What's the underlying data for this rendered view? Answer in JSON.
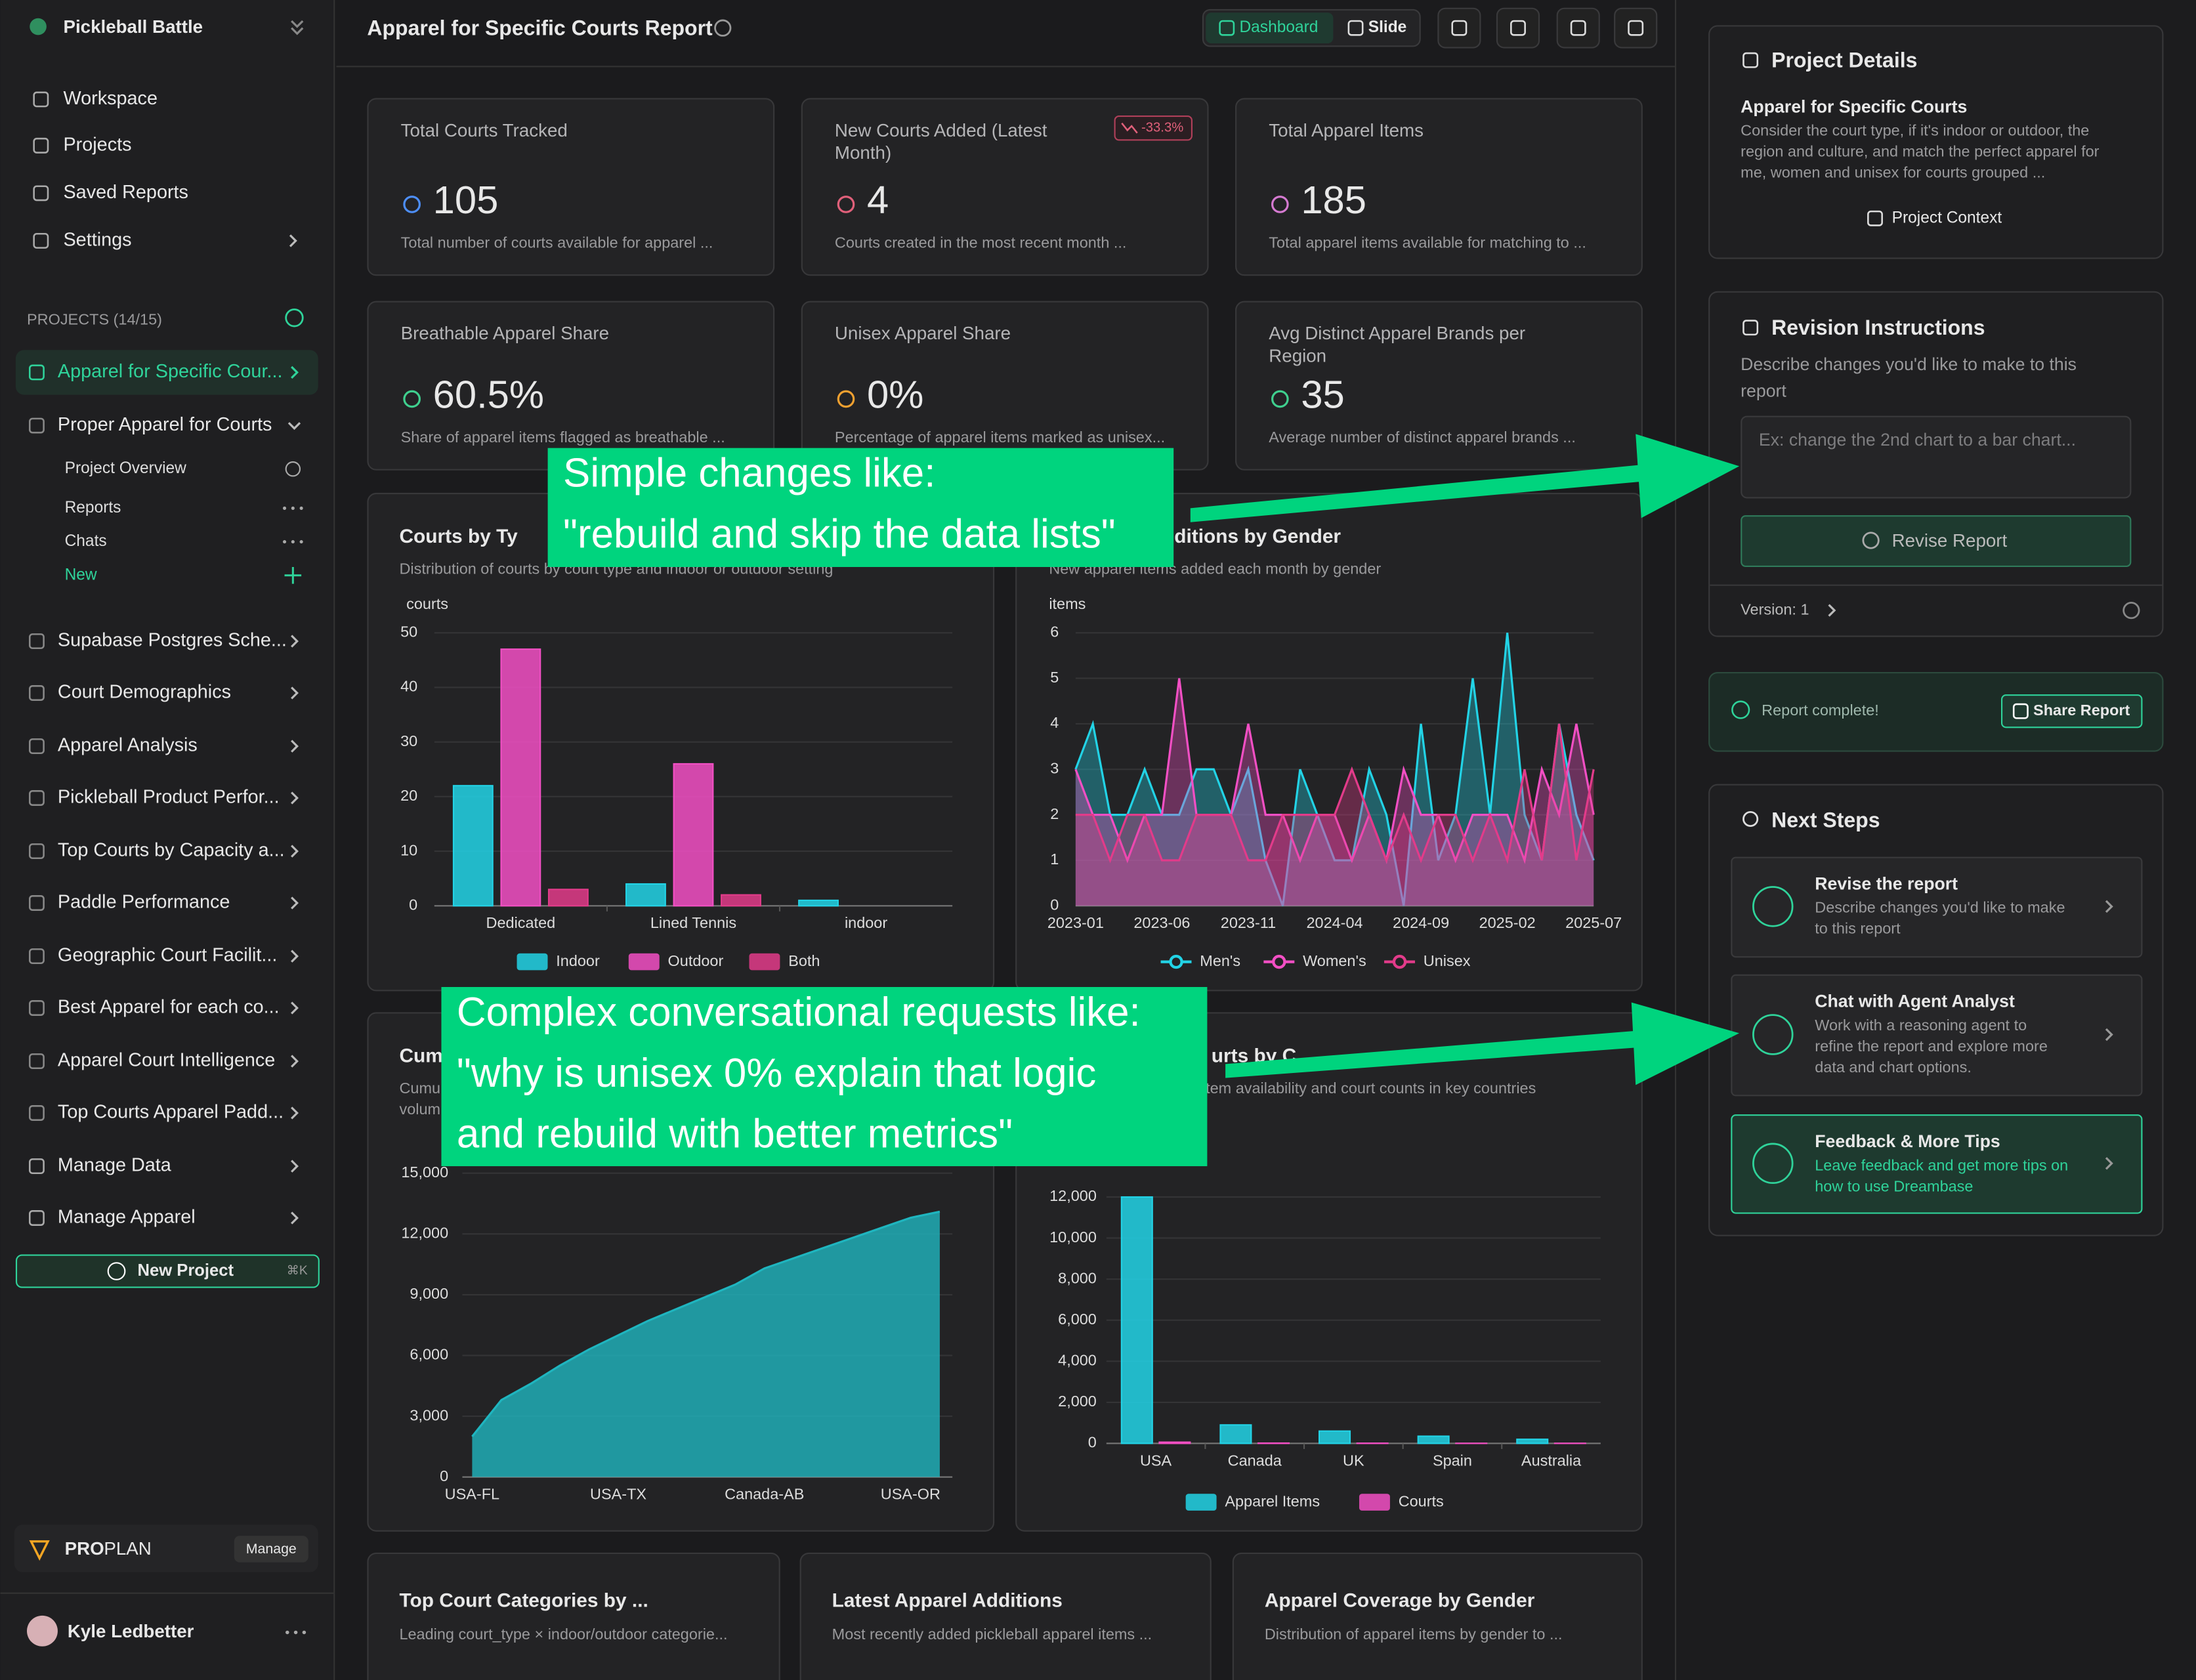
{
  "sidebar": {
    "workspace": "Pickleball Battle",
    "nav": [
      "Workspace",
      "Projects",
      "Saved Reports",
      "Settings"
    ],
    "projects_heading": "PROJECTS (14/15)",
    "projects": [
      "Apparel for Specific Cour...",
      "Proper Apparel for Courts",
      "Supabase Postgres Sche...",
      "Court Demographics",
      "Apparel Analysis",
      "Pickleball Product Perfor...",
      "Top Courts by Capacity a...",
      "Paddle Performance",
      "Geographic Court Facilit...",
      "Best Apparel for each co...",
      "Apparel Court Intelligence",
      "Top Courts Apparel Padd..."
    ],
    "expanded_items": [
      "Project Overview",
      "Reports",
      "Chats",
      "New"
    ],
    "manage": [
      "Manage Data",
      "Manage Apparel"
    ],
    "new_project": "New Project",
    "shortcut": "⌘K",
    "plan": {
      "tier": "PRO",
      "label": "PLAN",
      "action": "Manage"
    },
    "user": "Kyle Ledbetter"
  },
  "header": {
    "title": "Apparel for Specific Courts Report",
    "views": [
      "Dashboard",
      "Slide"
    ]
  },
  "kpis": [
    {
      "title": [
        "Total Courts Tracked"
      ],
      "value": "105",
      "description": "Total number of courts available for apparel ..."
    },
    {
      "title": [
        "New Courts Added (Latest",
        "Month)"
      ],
      "value": "4",
      "badge": "-33.3%",
      "description": "Courts created in the most recent month ..."
    },
    {
      "title": [
        "Total Apparel Items"
      ],
      "value": "185",
      "description": "Total apparel items available for matching to ..."
    },
    {
      "title": [
        "Breathable Apparel Share"
      ],
      "value": "60.5%",
      "description": "Share of apparel items flagged as breathable ..."
    },
    {
      "title": [
        "Unisex Apparel Share"
      ],
      "value": "0%",
      "description": "Percentage of apparel items marked as unisex..."
    },
    {
      "title": [
        "Avg Distinct Apparel Brands per",
        "Region"
      ],
      "value": "35",
      "description": "Average number of distinct apparel brands ..."
    }
  ],
  "charts": [
    {
      "type": "bar",
      "title": "Courts by Ty",
      "subtitle": [
        "Distribution of courts by court type and indoor or outdoor setting"
      ],
      "y_label": "courts",
      "categories": [
        "Dedicated",
        "Lined Tennis",
        "indoor"
      ],
      "ylim": [
        0,
        50
      ],
      "yticks": [
        0,
        10,
        20,
        30,
        40,
        50
      ],
      "series": [
        {
          "name": "Indoor",
          "color": "#22d3e6",
          "values": [
            22,
            4,
            1
          ]
        },
        {
          "name": "Outdoor",
          "color": "#f24fc4",
          "values": [
            47,
            26,
            0
          ]
        },
        {
          "name": "Both",
          "color": "#e23b8a",
          "values": [
            3,
            2,
            0
          ]
        }
      ]
    },
    {
      "type": "line",
      "title": "parel Additions by Gender",
      "subtitle": [
        "New apparel items added each month by gender"
      ],
      "y_label": "items",
      "categories": [
        "2023-01",
        null,
        null,
        null,
        null,
        "2023-06",
        null,
        null,
        null,
        null,
        "2023-11",
        null,
        null,
        null,
        null,
        "2024-04",
        null,
        null,
        null,
        null,
        "2024-09",
        null,
        null,
        null,
        null,
        "2025-02",
        null,
        null,
        null,
        null,
        "2025-07"
      ],
      "ylim": [
        0,
        6
      ],
      "yticks": [
        0,
        1,
        2,
        3,
        4,
        5,
        6
      ],
      "series": [
        {
          "name": "Men's",
          "color": "#22d3e6",
          "values": [
            3,
            4,
            2,
            2,
            3,
            2,
            2,
            3,
            3,
            2,
            3,
            1,
            0,
            3,
            2,
            1,
            1,
            3,
            2,
            0,
            4,
            1,
            2,
            5,
            2,
            6,
            2,
            1,
            4,
            2,
            1
          ]
        },
        {
          "name": "Women's",
          "color": "#f24fc4",
          "values": [
            3,
            2,
            2,
            1,
            2,
            2,
            5,
            2,
            2,
            2,
            4,
            2,
            2,
            1,
            2,
            2,
            1,
            2,
            1,
            3,
            2,
            2,
            1,
            2,
            2,
            2,
            1,
            3,
            2,
            4,
            2
          ]
        },
        {
          "name": "Unisex",
          "color": "#e23b8a",
          "values": [
            2,
            2,
            1,
            2,
            2,
            1,
            1,
            2,
            2,
            2,
            1,
            1,
            2,
            2,
            2,
            2,
            3,
            2,
            1,
            2,
            1,
            2,
            2,
            1,
            2,
            1,
            3,
            1,
            4,
            1,
            3
          ]
        }
      ]
    },
    {
      "type": "area",
      "title": "Cum",
      "subtitle": [
        "Cumu",
        "volum"
      ],
      "color": "#1fb5bf",
      "categories": [
        "USA-FL",
        null,
        null,
        null,
        null,
        "USA-TX",
        null,
        null,
        null,
        null,
        "Canada-AB",
        null,
        null,
        null,
        null,
        "USA-OR",
        null
      ],
      "values": [
        2000,
        3800,
        4600,
        5500,
        6300,
        7000,
        7700,
        8300,
        8900,
        9500,
        10300,
        10800,
        11300,
        11800,
        12300,
        12800,
        13100
      ],
      "ylim": [
        0,
        15000
      ],
      "yticks": [
        0,
        {
          "value": 3000,
          "label": "3,000"
        },
        {
          "value": 6000,
          "label": "6,000"
        },
        {
          "value": 9000,
          "label": "9,000"
        },
        {
          "value": 12000,
          "label": "12,000"
        },
        {
          "value": 15000,
          "label": "15,000"
        }
      ]
    },
    {
      "type": "bar",
      "title": "urts by C",
      "subtitle": [
        "l item availability and court counts in key countries"
      ],
      "categories": [
        "USA",
        "Canada",
        "UK",
        "Spain",
        "Australia"
      ],
      "ylim": [
        0,
        12000
      ],
      "yticks": [
        0,
        {
          "value": 2000,
          "label": "2,000"
        },
        {
          "value": 4000,
          "label": "4,000"
        },
        {
          "value": 6000,
          "label": "6,000"
        },
        {
          "value": 8000,
          "label": "8,000"
        },
        {
          "value": 10000,
          "label": "10,000"
        },
        {
          "value": 12000,
          "label": "12,000"
        }
      ],
      "series": [
        {
          "name": "Apparel Items",
          "color": "#22d3e6",
          "values": [
            12000,
            900,
            600,
            350,
            200
          ]
        },
        {
          "name": "Courts",
          "color": "#f24fc4",
          "values": [
            60,
            15,
            10,
            5,
            5
          ]
        }
      ]
    }
  ],
  "bottom_cards": [
    {
      "title": "Top Court Categories by ...",
      "subtitle": "Leading court_type × indoor/outdoor categorie..."
    },
    {
      "title": "Latest Apparel Additions",
      "subtitle": "Most recently added pickleball apparel items ..."
    },
    {
      "title": "Apparel Coverage by Gender",
      "subtitle": "Distribution of apparel items by gender to ..."
    }
  ],
  "callouts": [
    {
      "lines": [
        "Simple changes like:",
        "\"rebuild and skip the data lists\""
      ]
    },
    {
      "lines": [
        "Complex conversational requests like:",
        "\"why is unisex 0% explain that logic",
        "and rebuild with better metrics\""
      ]
    }
  ],
  "panel": {
    "project_details": {
      "heading": "Project Details",
      "name": "Apparel for Specific Courts",
      "description": [
        "Consider the court type, if it's indoor or outdoor, the",
        "region and culture, and match the perfect apparel for",
        "me, women and unisex for courts grouped ..."
      ],
      "action": "Project Context"
    },
    "revision": {
      "heading": "Revision Instructions",
      "description": [
        "Describe changes you'd like to make to this",
        "report"
      ],
      "placeholder": "Ex: change the 2nd chart to a bar chart...",
      "action": "Revise Report",
      "version": "Version: 1"
    },
    "status": {
      "text": "Report complete!",
      "action": "Share Report"
    },
    "next_steps": {
      "heading": "Next Steps",
      "items": [
        {
          "title": "Revise the report",
          "description": [
            "Describe changes you'd like to make",
            "to this report"
          ]
        },
        {
          "title": "Chat with Agent Analyst",
          "description": [
            "Work with a reasoning agent to",
            "refine the report and explore more",
            "data and chart options."
          ]
        },
        {
          "title": "Feedback & More Tips",
          "description": [
            "Leave feedback and get more tips on",
            "how to use Dreambase"
          ]
        }
      ]
    }
  }
}
